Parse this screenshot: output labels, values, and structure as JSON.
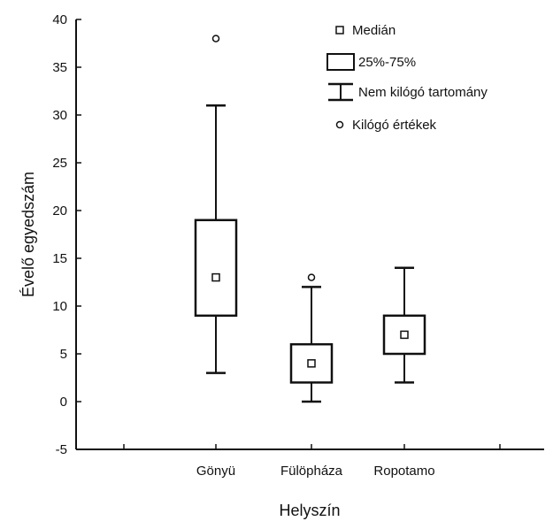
{
  "chart_data": {
    "type": "box",
    "xlabel": "Helyszín",
    "ylabel": "Évelő egyedszám",
    "ylim": [
      -5,
      40
    ],
    "yticks": [
      -5,
      0,
      5,
      10,
      15,
      20,
      25,
      30,
      35,
      40
    ],
    "categories": [
      "Gönyü",
      "Fülöpháza",
      "Ropotamo"
    ],
    "boxes": [
      {
        "category": "Gönyü",
        "median": 13,
        "q1": 9,
        "q3": 19,
        "whisker_low": 3,
        "whisker_high": 31,
        "outliers": [
          38
        ]
      },
      {
        "category": "Fülöpháza",
        "median": 4,
        "q1": 2,
        "q3": 6,
        "whisker_low": 0,
        "whisker_high": 12,
        "outliers": [
          13
        ]
      },
      {
        "category": "Ropotamo",
        "median": 7,
        "q1": 5,
        "q3": 9,
        "whisker_low": 2,
        "whisker_high": 14,
        "outliers": []
      }
    ],
    "legend": {
      "position": "top-right",
      "entries": [
        {
          "label": "Medián",
          "symbol": "median-square"
        },
        {
          "label": "25%-75%",
          "symbol": "box"
        },
        {
          "label": "Nem kilógó tartomány",
          "symbol": "whisker"
        },
        {
          "label": "Kilógó értékek",
          "symbol": "outlier-circle"
        }
      ]
    },
    "grid": false,
    "colors": {
      "ink": "#111111",
      "background": "#ffffff"
    }
  }
}
